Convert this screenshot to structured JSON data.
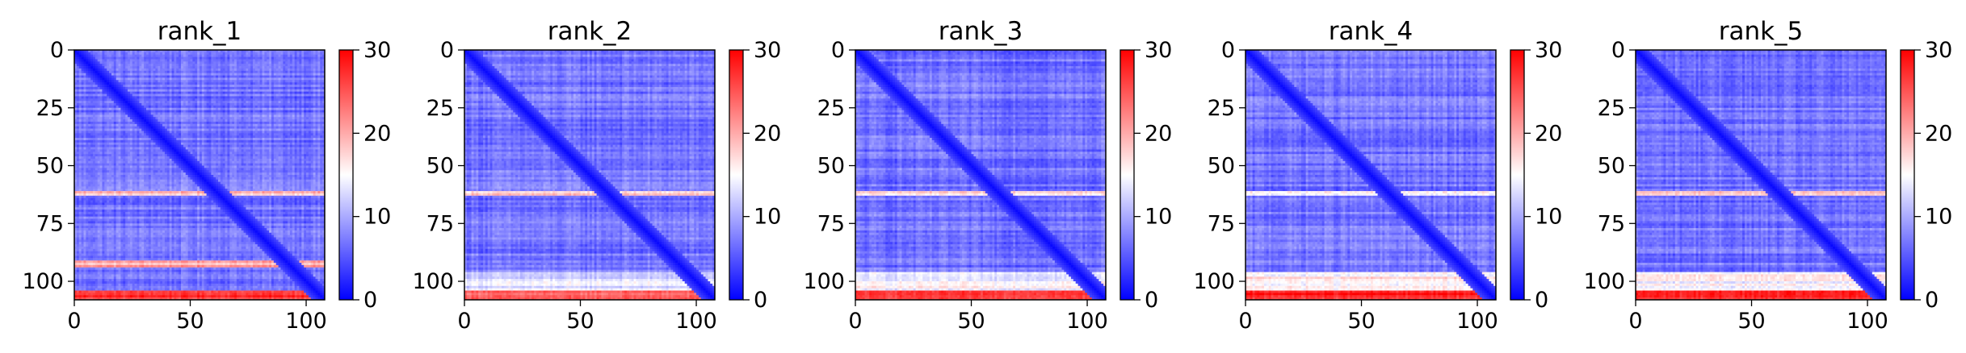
{
  "chart_data": [
    {
      "type": "heatmap",
      "title": "rank_1",
      "xlabel": "",
      "ylabel": "",
      "size": 108,
      "xlim": [
        0,
        108
      ],
      "ylim": [
        108,
        0
      ],
      "xticks": [
        0,
        50,
        100
      ],
      "yticks": [
        0,
        25,
        50,
        75,
        100
      ],
      "colorbar": {
        "range": [
          0,
          30
        ],
        "ticks": [
          0,
          10,
          20,
          30
        ],
        "colormap": "bwr"
      },
      "high_error_rows": [
        [
          61,
          63,
          18
        ],
        [
          91,
          94,
          20
        ],
        [
          104,
          108,
          27
        ]
      ]
    },
    {
      "type": "heatmap",
      "title": "rank_2",
      "xlabel": "",
      "ylabel": "",
      "size": 108,
      "xlim": [
        0,
        108
      ],
      "ylim": [
        108,
        0
      ],
      "xticks": [
        0,
        50,
        100
      ],
      "yticks": [
        0,
        25,
        50,
        75,
        100
      ],
      "colorbar": {
        "range": [
          0,
          30
        ],
        "ticks": [
          0,
          10,
          20,
          30
        ],
        "colormap": "bwr"
      },
      "high_error_rows": [
        [
          61,
          63,
          17
        ],
        [
          96,
          104,
          13
        ],
        [
          104,
          108,
          25
        ]
      ]
    },
    {
      "type": "heatmap",
      "title": "rank_3",
      "xlabel": "",
      "ylabel": "",
      "size": 108,
      "xlim": [
        0,
        108
      ],
      "ylim": [
        108,
        0
      ],
      "xticks": [
        0,
        50,
        100
      ],
      "yticks": [
        0,
        25,
        50,
        75,
        100
      ],
      "colorbar": {
        "range": [
          0,
          30
        ],
        "ticks": [
          0,
          10,
          20,
          30
        ],
        "colormap": "bwr"
      },
      "high_error_rows": [
        [
          61,
          63,
          16
        ],
        [
          96,
          104,
          15
        ],
        [
          104,
          108,
          25
        ]
      ]
    },
    {
      "type": "heatmap",
      "title": "rank_4",
      "xlabel": "",
      "ylabel": "",
      "size": 108,
      "xlim": [
        0,
        108
      ],
      "ylim": [
        108,
        0
      ],
      "xticks": [
        0,
        50,
        100
      ],
      "yticks": [
        0,
        25,
        50,
        75,
        100
      ],
      "colorbar": {
        "range": [
          0,
          30
        ],
        "ticks": [
          0,
          10,
          20,
          30
        ],
        "colormap": "bwr"
      },
      "high_error_rows": [
        [
          61,
          63,
          16
        ],
        [
          96,
          104,
          16
        ],
        [
          104,
          108,
          28
        ]
      ]
    },
    {
      "type": "heatmap",
      "title": "rank_5",
      "xlabel": "",
      "ylabel": "",
      "size": 108,
      "xlim": [
        0,
        108
      ],
      "ylim": [
        108,
        0
      ],
      "xticks": [
        0,
        50,
        100
      ],
      "yticks": [
        0,
        25,
        50,
        75,
        100
      ],
      "colorbar": {
        "range": [
          0,
          30
        ],
        "ticks": [
          0,
          10,
          20,
          30
        ],
        "colormap": "bwr"
      },
      "high_error_rows": [
        [
          61,
          63,
          17
        ],
        [
          96,
          104,
          15
        ],
        [
          104,
          108,
          27
        ]
      ]
    }
  ]
}
